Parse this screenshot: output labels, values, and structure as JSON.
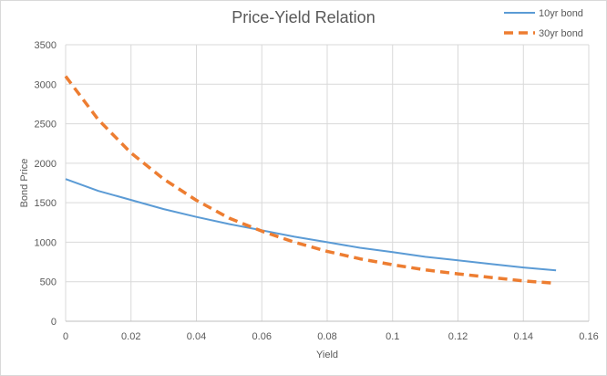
{
  "chart_data": {
    "type": "line",
    "title": "Price-Yield Relation",
    "xlabel": "Yield",
    "ylabel": "Bond Price",
    "xlim": [
      0,
      0.16
    ],
    "ylim": [
      0,
      3500
    ],
    "x_ticks": [
      "0",
      "0.02",
      "0.04",
      "0.06",
      "0.08",
      "0.1",
      "0.12",
      "0.14",
      "0.16"
    ],
    "y_ticks": [
      "0",
      "500",
      "1000",
      "1500",
      "2000",
      "2500",
      "3000",
      "3500"
    ],
    "grid": true,
    "legend_position": "top-right",
    "series": [
      {
        "name": "10yr bond",
        "color": "#5b9bd5",
        "style": "solid",
        "x": [
          0,
          0.01,
          0.02,
          0.03,
          0.04,
          0.05,
          0.06,
          0.07,
          0.08,
          0.09,
          0.1,
          0.11,
          0.12,
          0.13,
          0.14,
          0.15
        ],
        "y": [
          1800,
          1650,
          1535,
          1420,
          1320,
          1230,
          1150,
          1070,
          1000,
          930,
          875,
          815,
          770,
          725,
          680,
          645
        ]
      },
      {
        "name": "30yr bond",
        "color": "#ed7d31",
        "style": "dashed",
        "x": [
          0,
          0.01,
          0.02,
          0.03,
          0.04,
          0.05,
          0.06,
          0.07,
          0.08,
          0.09,
          0.1,
          0.11,
          0.12,
          0.13,
          0.14,
          0.15
        ],
        "y": [
          3100,
          2550,
          2130,
          1800,
          1530,
          1305,
          1140,
          1000,
          885,
          790,
          715,
          650,
          600,
          555,
          510,
          480
        ]
      }
    ]
  }
}
